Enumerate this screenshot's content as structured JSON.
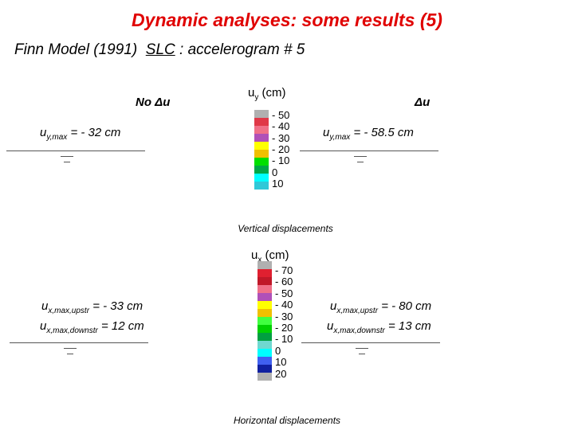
{
  "header": {
    "title": "Dynamic analyses: some results (5)",
    "subtitle": [
      "Finn Model (1991)",
      "SLC",
      ": accelerogram # 5"
    ]
  },
  "vertical": {
    "left_label": "No Δu",
    "right_label": "Δu",
    "left_result": [
      {
        "symbol": "u",
        "subscript": "y,max",
        "text": " = - 32 cm"
      }
    ],
    "right_result": [
      {
        "symbol": "u",
        "subscript": "y,max",
        "text": " = - 58.5 cm"
      }
    ],
    "legend": {
      "symbol": "u",
      "subscript": "y",
      "unit": " (cm)",
      "labels": [
        "- 50",
        "- 40",
        "- 30",
        "- 20",
        "- 10",
        "0",
        "10"
      ],
      "colors": [
        "#b0b0b0",
        "#e03848",
        "#f07088",
        "#b050b8",
        "#ffff00",
        "#f0c000",
        "#00e000",
        "#00a848",
        "#00ffff",
        "#30c8d8"
      ]
    },
    "caption": "Vertical displacements"
  },
  "horizontal": {
    "left_result": [
      {
        "symbol": "u",
        "subscript": "x,max,upstr",
        "text": " = - 33 cm"
      },
      {
        "symbol": "u",
        "subscript": "x,max,downstr",
        "text": " = 12 cm"
      }
    ],
    "right_result": [
      {
        "symbol": "u",
        "subscript": "x,max,upstr",
        "text": " = - 80 cm"
      },
      {
        "symbol": "u",
        "subscript": "x,max,downstr",
        "text": " = 13 cm"
      }
    ],
    "legend": {
      "symbol": "u",
      "subscript": "x",
      "unit": " (cm)",
      "labels": [
        "- 70",
        "- 60",
        "- 50",
        "- 40",
        "- 30",
        "- 20",
        "- 10",
        "0",
        "10",
        "20"
      ],
      "colors": [
        "#b0b0b0",
        "#e02030",
        "#c01828",
        "#f07088",
        "#b050b8",
        "#ffff00",
        "#f0c000",
        "#40ff40",
        "#00d000",
        "#00a040",
        "#70d8d0",
        "#00ffff",
        "#4060f0",
        "#1020a0",
        "#b0b0b0"
      ]
    },
    "caption": "Horizontal displacements"
  }
}
